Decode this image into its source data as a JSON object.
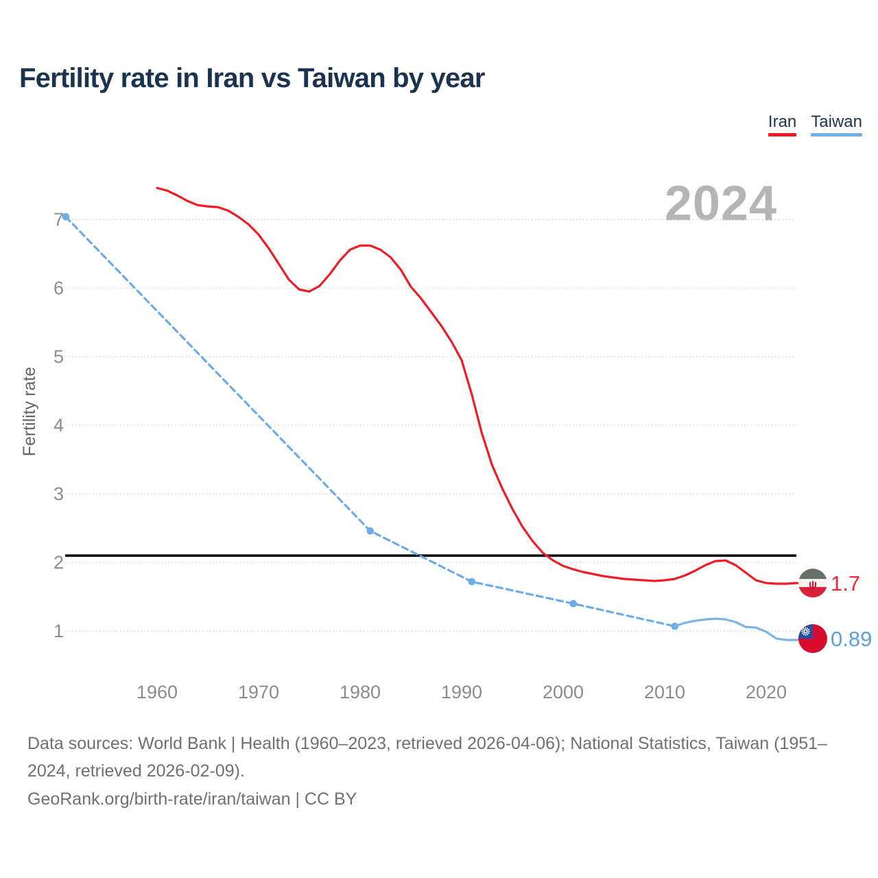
{
  "page": {
    "title": "Fertility rate in Iran vs Taiwan by year"
  },
  "watermark": "2024",
  "legend": [
    {
      "label": "Iran",
      "color": "#ee1c25"
    },
    {
      "label": "Taiwan",
      "color": "#71b1e8"
    }
  ],
  "footer": {
    "sources": "Data sources: World Bank | Health (1960–2023, retrieved 2026-04-06); National Statistics, Taiwan (1951–2024, retrieved 2026-02-09).",
    "attribution": "GeoRank.org/birth-rate/iran/taiwan | CC BY"
  },
  "chart_data": {
    "type": "line",
    "title": "Fertility rate in Iran vs Taiwan by year",
    "xlabel": "",
    "ylabel": "Fertility rate",
    "xlim": [
      1951,
      2024
    ],
    "ylim": [
      0.6,
      7.6
    ],
    "xticks": [
      1960,
      1970,
      1980,
      1990,
      2000,
      2010,
      2020
    ],
    "yticks": [
      1,
      2,
      3,
      4,
      5,
      6,
      7
    ],
    "grid": true,
    "legend_position": "top-right",
    "replacement_line": {
      "value": 2.1,
      "color": "#000000"
    },
    "series": [
      {
        "name": "Iran",
        "color": "#ee1c25",
        "end_label": {
          "value": "1.7",
          "color": "#ee2b31",
          "flag": "iran-flag-icon"
        },
        "segments": [
          {
            "dash": null,
            "markers": false,
            "points": [
              [
                1960,
                7.46
              ],
              [
                1961,
                7.42
              ],
              [
                1962,
                7.35
              ],
              [
                1963,
                7.27
              ],
              [
                1964,
                7.21
              ],
              [
                1965,
                7.19
              ],
              [
                1966,
                7.18
              ],
              [
                1967,
                7.13
              ],
              [
                1968,
                7.04
              ],
              [
                1969,
                6.93
              ],
              [
                1970,
                6.78
              ],
              [
                1971,
                6.58
              ],
              [
                1972,
                6.35
              ],
              [
                1973,
                6.12
              ],
              [
                1974,
                5.98
              ],
              [
                1975,
                5.95
              ],
              [
                1976,
                6.03
              ],
              [
                1977,
                6.2
              ],
              [
                1978,
                6.4
              ],
              [
                1979,
                6.56
              ],
              [
                1980,
                6.62
              ],
              [
                1981,
                6.62
              ],
              [
                1982,
                6.56
              ],
              [
                1983,
                6.45
              ],
              [
                1984,
                6.27
              ],
              [
                1985,
                6.02
              ],
              [
                1986,
                5.85
              ],
              [
                1987,
                5.65
              ],
              [
                1988,
                5.45
              ],
              [
                1989,
                5.22
              ],
              [
                1990,
                4.95
              ],
              [
                1991,
                4.45
              ],
              [
                1992,
                3.88
              ],
              [
                1993,
                3.42
              ],
              [
                1994,
                3.08
              ],
              [
                1995,
                2.78
              ],
              [
                1996,
                2.52
              ],
              [
                1997,
                2.31
              ],
              [
                1998,
                2.14
              ],
              [
                1999,
                2.03
              ],
              [
                2000,
                1.95
              ],
              [
                2001,
                1.9
              ],
              [
                2002,
                1.86
              ],
              [
                2003,
                1.83
              ],
              [
                2004,
                1.8
              ],
              [
                2005,
                1.78
              ],
              [
                2006,
                1.76
              ],
              [
                2007,
                1.75
              ],
              [
                2008,
                1.74
              ],
              [
                2009,
                1.73
              ],
              [
                2010,
                1.74
              ],
              [
                2011,
                1.76
              ],
              [
                2012,
                1.81
              ],
              [
                2013,
                1.88
              ],
              [
                2014,
                1.96
              ],
              [
                2015,
                2.02
              ],
              [
                2016,
                2.03
              ],
              [
                2017,
                1.96
              ],
              [
                2018,
                1.85
              ],
              [
                2019,
                1.74
              ],
              [
                2020,
                1.7
              ],
              [
                2021,
                1.69
              ],
              [
                2022,
                1.69
              ],
              [
                2023,
                1.7
              ]
            ]
          }
        ]
      },
      {
        "name": "Taiwan",
        "color": "#6babe6",
        "end_label": {
          "value": "0.89",
          "color": "#5b9fdf",
          "flag": "taiwan-flag-icon"
        },
        "segments": [
          {
            "dash": "9 6",
            "markers": true,
            "points": [
              [
                1951,
                7.04
              ],
              [
                1981,
                2.46
              ],
              [
                1991,
                1.72
              ],
              [
                2001,
                1.4
              ],
              [
                2011,
                1.07
              ]
            ]
          },
          {
            "dash": null,
            "markers": false,
            "color": "#7db4e8",
            "points": [
              [
                2011,
                1.07
              ],
              [
                2012,
                1.12
              ],
              [
                2013,
                1.15
              ],
              [
                2014,
                1.17
              ],
              [
                2015,
                1.18
              ],
              [
                2016,
                1.17
              ],
              [
                2017,
                1.13
              ],
              [
                2018,
                1.06
              ],
              [
                2019,
                1.05
              ],
              [
                2020,
                0.99
              ],
              [
                2021,
                0.89
              ],
              [
                2022,
                0.87
              ],
              [
                2023,
                0.87
              ],
              [
                2024,
                0.89
              ]
            ]
          }
        ]
      }
    ]
  }
}
